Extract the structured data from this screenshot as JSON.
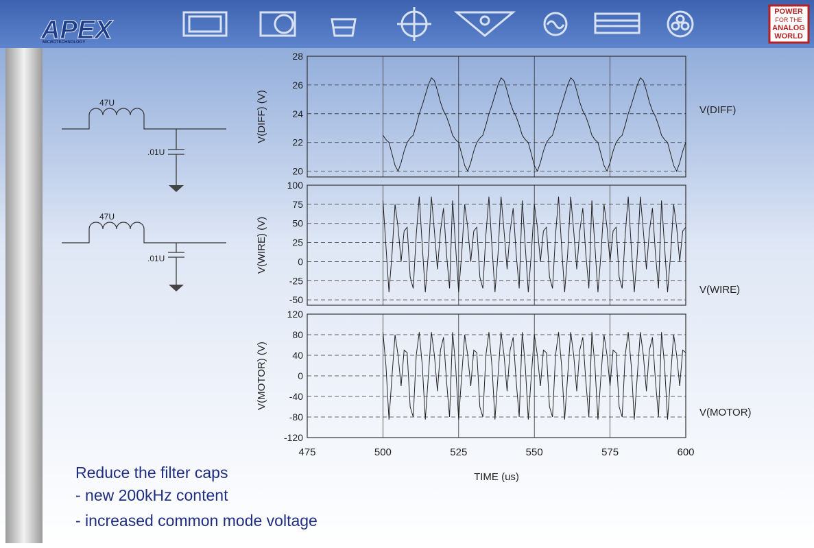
{
  "header": {
    "logo": "APEX",
    "logo_subtitle": "MICROTECHNOLOGY",
    "badge": [
      "POWER",
      "FOR THE",
      "ANALOG",
      "WORLD"
    ]
  },
  "circuit": {
    "inductor_1": "47U",
    "capacitor_1": ".01U",
    "inductor_2": "47U",
    "capacitor_2": ".01U"
  },
  "notes": [
    "Reduce the filter caps",
    "- new 200kHz content",
    "- increased common mode voltage"
  ],
  "chart_data": [
    {
      "type": "line",
      "ylabel": "V(DIFF)  (V)",
      "x": [
        500,
        501,
        502,
        503,
        504,
        505,
        506,
        507,
        508,
        509,
        510,
        511,
        512,
        513,
        514,
        515,
        516,
        517,
        518,
        519,
        520,
        521,
        522,
        523,
        524,
        525,
        526,
        527,
        528,
        529,
        530,
        531,
        532,
        533,
        534,
        535,
        536,
        537,
        538,
        539,
        540,
        541,
        542,
        543,
        544,
        545,
        546,
        547,
        548,
        549,
        550,
        551,
        552,
        553,
        554,
        555,
        556,
        557,
        558,
        559,
        560,
        561,
        562,
        563,
        564,
        565,
        566,
        567,
        568,
        569,
        570,
        571,
        572,
        573,
        574,
        575,
        576,
        577,
        578,
        579,
        580,
        581,
        582,
        583,
        584,
        585,
        586,
        587,
        588,
        589,
        590,
        591,
        592,
        593,
        594,
        595,
        596,
        597,
        598,
        599,
        600
      ],
      "series": [
        {
          "name": "V(DIFF)",
          "color": "#222222",
          "values": [
            22.5,
            22.2,
            22,
            21.2,
            20.4,
            20,
            20.6,
            21.4,
            22,
            22.3,
            22.5,
            23.2,
            24,
            24.6,
            25.3,
            26,
            26.5,
            26.3,
            25.6,
            24.8,
            24.2,
            23.8,
            23.2,
            22.5,
            22.2,
            22,
            21.2,
            20.4,
            20,
            20.6,
            21.4,
            22,
            22.3,
            22.5,
            23.2,
            24,
            24.6,
            25.3,
            26,
            26.5,
            26.3,
            25.6,
            24.8,
            24.2,
            23.8,
            23.2,
            22.5,
            22.2,
            22,
            21.2,
            20.4,
            20,
            20.6,
            21.4,
            22,
            22.3,
            22.5,
            23.2,
            24,
            24.6,
            25.3,
            26,
            26.5,
            26.3,
            25.6,
            24.8,
            24.2,
            23.8,
            23.2,
            22.5,
            22.2,
            22,
            21.2,
            20.4,
            20,
            20.6,
            21.4,
            22,
            22.3,
            22.5,
            23.2,
            24,
            24.6,
            25.3,
            26,
            26.5,
            26.3,
            25.6,
            24.8,
            24.2,
            23.8,
            23.2,
            22.5,
            22.2,
            22,
            21.2,
            20.4,
            20,
            20.6,
            21.4,
            22
          ]
        }
      ],
      "xlim": [
        475,
        600
      ],
      "xticks": [
        475,
        500,
        525,
        550,
        575,
        600
      ],
      "ylim": [
        19.6,
        28
      ],
      "yticks": [
        20,
        22,
        24,
        26,
        28
      ],
      "grid": true
    },
    {
      "type": "line",
      "ylabel": "V(WIRE)  (V)",
      "x": [
        500,
        501,
        502,
        503,
        504,
        505,
        506,
        507,
        508,
        509,
        510,
        511,
        512,
        513,
        514,
        515,
        516,
        517,
        518,
        519,
        520,
        521,
        522,
        523,
        524,
        525,
        526,
        527,
        528,
        529,
        530,
        531,
        532,
        533,
        534,
        535,
        536,
        537,
        538,
        539,
        540,
        541,
        542,
        543,
        544,
        545,
        546,
        547,
        548,
        549,
        550,
        551,
        552,
        553,
        554,
        555,
        556,
        557,
        558,
        559,
        560,
        561,
        562,
        563,
        564,
        565,
        566,
        567,
        568,
        569,
        570,
        571,
        572,
        573,
        574,
        575,
        576,
        577,
        578,
        579,
        580,
        581,
        582,
        583,
        584,
        585,
        586,
        587,
        588,
        589,
        590,
        591,
        592,
        593,
        594,
        595,
        596,
        597,
        598,
        599,
        600
      ],
      "series": [
        {
          "name": "V(WIRE)",
          "color": "#222222",
          "values": [
            80,
            20,
            -40,
            10,
            75,
            45,
            0,
            40,
            45,
            -20,
            -35,
            35,
            85,
            20,
            -40,
            10,
            85,
            40,
            -10,
            40,
            70,
            10,
            -35,
            80,
            20,
            -40,
            10,
            75,
            45,
            0,
            40,
            45,
            -20,
            -35,
            35,
            85,
            20,
            -40,
            10,
            85,
            40,
            -10,
            40,
            70,
            10,
            -35,
            80,
            20,
            -40,
            10,
            75,
            45,
            0,
            40,
            45,
            -20,
            -35,
            35,
            85,
            20,
            -40,
            10,
            85,
            40,
            -10,
            40,
            70,
            10,
            -35,
            80,
            20,
            -40,
            10,
            75,
            45,
            0,
            40,
            45,
            -20,
            -35,
            35,
            85,
            20,
            -40,
            10,
            85,
            40,
            -10,
            40,
            70,
            10,
            -35,
            80,
            20,
            -40,
            10,
            75,
            45,
            0,
            40,
            45
          ]
        }
      ],
      "xlim": [
        475,
        600
      ],
      "xticks": [
        475,
        500,
        525,
        550,
        575,
        600
      ],
      "ylim": [
        -57,
        100
      ],
      "yticks": [
        -50,
        -25,
        0,
        25,
        50,
        75,
        100
      ],
      "grid": true
    },
    {
      "type": "line",
      "ylabel": "V(MOTOR)  (V)",
      "xlabel": "TIME  (us)",
      "x": [
        500,
        501,
        502,
        503,
        504,
        505,
        506,
        507,
        508,
        509,
        510,
        511,
        512,
        513,
        514,
        515,
        516,
        517,
        518,
        519,
        520,
        521,
        522,
        523,
        524,
        525,
        526,
        527,
        528,
        529,
        530,
        531,
        532,
        533,
        534,
        535,
        536,
        537,
        538,
        539,
        540,
        541,
        542,
        543,
        544,
        545,
        546,
        547,
        548,
        549,
        550,
        551,
        552,
        553,
        554,
        555,
        556,
        557,
        558,
        559,
        560,
        561,
        562,
        563,
        564,
        565,
        566,
        567,
        568,
        569,
        570,
        571,
        572,
        573,
        574,
        575,
        576,
        577,
        578,
        579,
        580,
        581,
        582,
        583,
        584,
        585,
        586,
        587,
        588,
        589,
        590,
        591,
        592,
        593,
        594,
        595,
        596,
        597,
        598,
        599,
        600
      ],
      "series": [
        {
          "name": "V(MOTOR)",
          "color": "#222222",
          "values": [
            85,
            20,
            -85,
            0,
            80,
            40,
            -20,
            50,
            45,
            -60,
            -80,
            40,
            85,
            20,
            -85,
            0,
            85,
            40,
            -30,
            50,
            75,
            -10,
            -80,
            85,
            20,
            -85,
            0,
            80,
            40,
            -20,
            50,
            45,
            -60,
            -80,
            40,
            85,
            20,
            -85,
            0,
            85,
            40,
            -30,
            50,
            75,
            -10,
            -80,
            85,
            20,
            -85,
            0,
            80,
            40,
            -20,
            50,
            45,
            -60,
            -80,
            40,
            85,
            20,
            -85,
            0,
            85,
            40,
            -30,
            50,
            75,
            -10,
            -80,
            85,
            20,
            -85,
            0,
            80,
            40,
            -20,
            50,
            45,
            -60,
            -80,
            40,
            85,
            20,
            -85,
            0,
            85,
            40,
            -30,
            50,
            75,
            -10,
            -80,
            85,
            20,
            -85,
            0,
            80,
            40,
            -20,
            50,
            45
          ]
        }
      ],
      "xlim": [
        475,
        600
      ],
      "xticks": [
        475,
        500,
        525,
        550,
        575,
        600
      ],
      "ylim": [
        -120,
        120
      ],
      "yticks": [
        -120,
        -80,
        -40,
        0,
        40,
        80,
        120
      ],
      "grid": true
    }
  ]
}
